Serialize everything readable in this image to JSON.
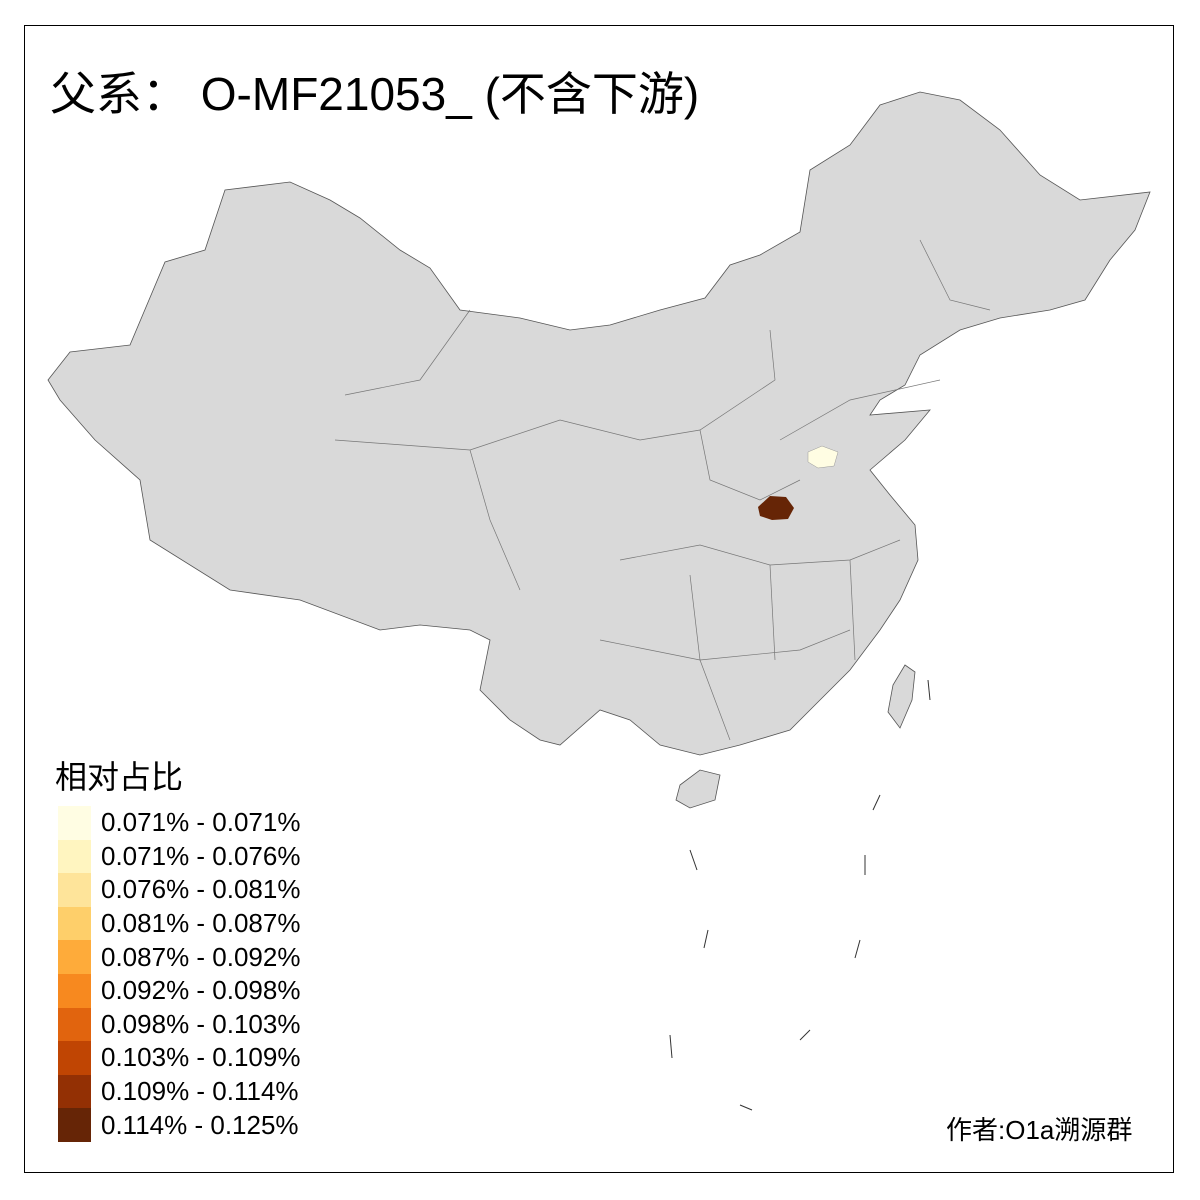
{
  "title": "父系： O-MF21053_ (不含下游)",
  "legend": {
    "title": "相对占比",
    "items": [
      {
        "label": "0.071% - 0.071%",
        "color": "#FFFDE3"
      },
      {
        "label": "0.071% - 0.076%",
        "color": "#FFF5C0"
      },
      {
        "label": "0.076% - 0.081%",
        "color": "#FEE49A"
      },
      {
        "label": "0.081% - 0.087%",
        "color": "#FECF6A"
      },
      {
        "label": "0.087% - 0.092%",
        "color": "#FEAB3A"
      },
      {
        "label": "0.092% - 0.098%",
        "color": "#F7891F"
      },
      {
        "label": "0.098% - 0.103%",
        "color": "#E1640E"
      },
      {
        "label": "0.103% - 0.109%",
        "color": "#C04503"
      },
      {
        "label": "0.109% - 0.114%",
        "color": "#933004"
      },
      {
        "label": "0.114% - 0.125%",
        "color": "#662506"
      }
    ]
  },
  "map": {
    "base_color": "#D9D9D9",
    "highlighted_regions": [
      {
        "region": "Henan (west-central prefecture)",
        "color": "#662506"
      },
      {
        "region": "Shandong (western prefecture)",
        "color": "#FFFDE3"
      }
    ]
  },
  "author": "作者:O1a溯源群"
}
